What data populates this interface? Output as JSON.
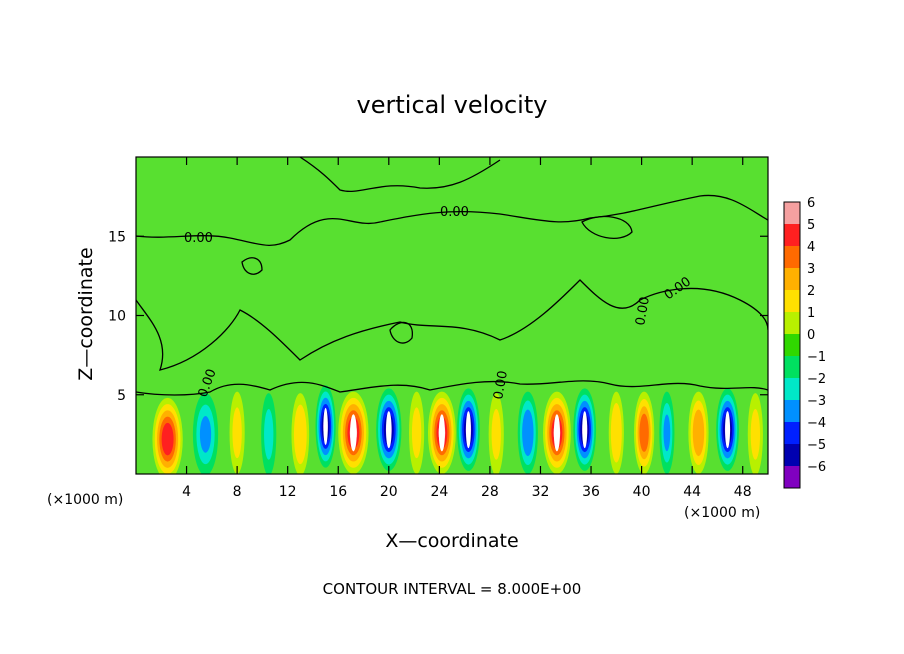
{
  "chart_data": {
    "type": "heatmap",
    "title": "vertical velocity",
    "xlabel": "X—coordinate",
    "ylabel": "Z—coordinate",
    "x_unit_left": "(×1000 m)",
    "x_unit_right": "(×1000 m)",
    "footer": "CONTOUR INTERVAL = 8.000E+00",
    "xlim": [
      0,
      50
    ],
    "ylim": [
      0,
      20
    ],
    "xticks": [
      4,
      8,
      12,
      16,
      20,
      24,
      28,
      32,
      36,
      40,
      44,
      48
    ],
    "xtick_labels": [
      "4",
      "8",
      "12",
      "16",
      "20",
      "24",
      "28",
      "32",
      "36",
      "40",
      "44",
      "48"
    ],
    "yticks": [
      5,
      10,
      15
    ],
    "ytick_labels": [
      "5",
      "10",
      "15"
    ],
    "contour_label": "0.00",
    "colorbar": {
      "levels": [
        6,
        5,
        4,
        3,
        2,
        1,
        0,
        -1,
        -2,
        -3,
        -4,
        -5,
        -6
      ],
      "labels": [
        "6",
        "5",
        "4",
        "3",
        "2",
        "1",
        "0",
        "−1",
        "−2",
        "−3",
        "−4",
        "−5",
        "−6"
      ],
      "colors": [
        "#f5a0a0",
        "#ff2020",
        "#ff6a00",
        "#ffb000",
        "#ffe000",
        "#b8f000",
        "#30d800",
        "#00e060",
        "#00e8c8",
        "#0090ff",
        "#0020ff",
        "#0000b0",
        "#8000c0"
      ]
    },
    "background_color": "#58e030",
    "cells": [
      {
        "x": 2.5,
        "z": 2.2,
        "w": 1.2,
        "wt": 5.5
      },
      {
        "x": 5.5,
        "z": 2.5,
        "w": 1.0,
        "wt": -3.0
      },
      {
        "x": 8.0,
        "z": 2.6,
        "w": 0.6,
        "wt": 2.0
      },
      {
        "x": 10.5,
        "z": 2.5,
        "w": 0.6,
        "wt": -2.0
      },
      {
        "x": 13.0,
        "z": 2.5,
        "w": 0.7,
        "wt": 2.5
      },
      {
        "x": 15.0,
        "z": 3.0,
        "w": 0.8,
        "wt": -6.0
      },
      {
        "x": 17.2,
        "z": 2.6,
        "w": 1.2,
        "wt": 6.0
      },
      {
        "x": 20.0,
        "z": 2.8,
        "w": 1.0,
        "wt": -6.0
      },
      {
        "x": 22.2,
        "z": 2.6,
        "w": 0.6,
        "wt": 2.0
      },
      {
        "x": 24.2,
        "z": 2.6,
        "w": 1.1,
        "wt": 6.0
      },
      {
        "x": 26.3,
        "z": 2.8,
        "w": 0.9,
        "wt": -6.0
      },
      {
        "x": 28.5,
        "z": 2.5,
        "w": 0.6,
        "wt": 2.0
      },
      {
        "x": 31.0,
        "z": 2.6,
        "w": 0.8,
        "wt": -3.5
      },
      {
        "x": 33.3,
        "z": 2.6,
        "w": 1.1,
        "wt": 6.0
      },
      {
        "x": 35.5,
        "z": 2.8,
        "w": 0.9,
        "wt": -6.0
      },
      {
        "x": 38.0,
        "z": 2.6,
        "w": 0.6,
        "wt": 2.5
      },
      {
        "x": 40.2,
        "z": 2.6,
        "w": 0.8,
        "wt": 4.5
      },
      {
        "x": 42.0,
        "z": 2.6,
        "w": 0.6,
        "wt": -3.0
      },
      {
        "x": 44.5,
        "z": 2.6,
        "w": 0.8,
        "wt": 3.5
      },
      {
        "x": 46.8,
        "z": 2.8,
        "w": 0.9,
        "wt": -6.0
      },
      {
        "x": 49.0,
        "z": 2.5,
        "w": 0.6,
        "wt": 2.0
      }
    ]
  }
}
